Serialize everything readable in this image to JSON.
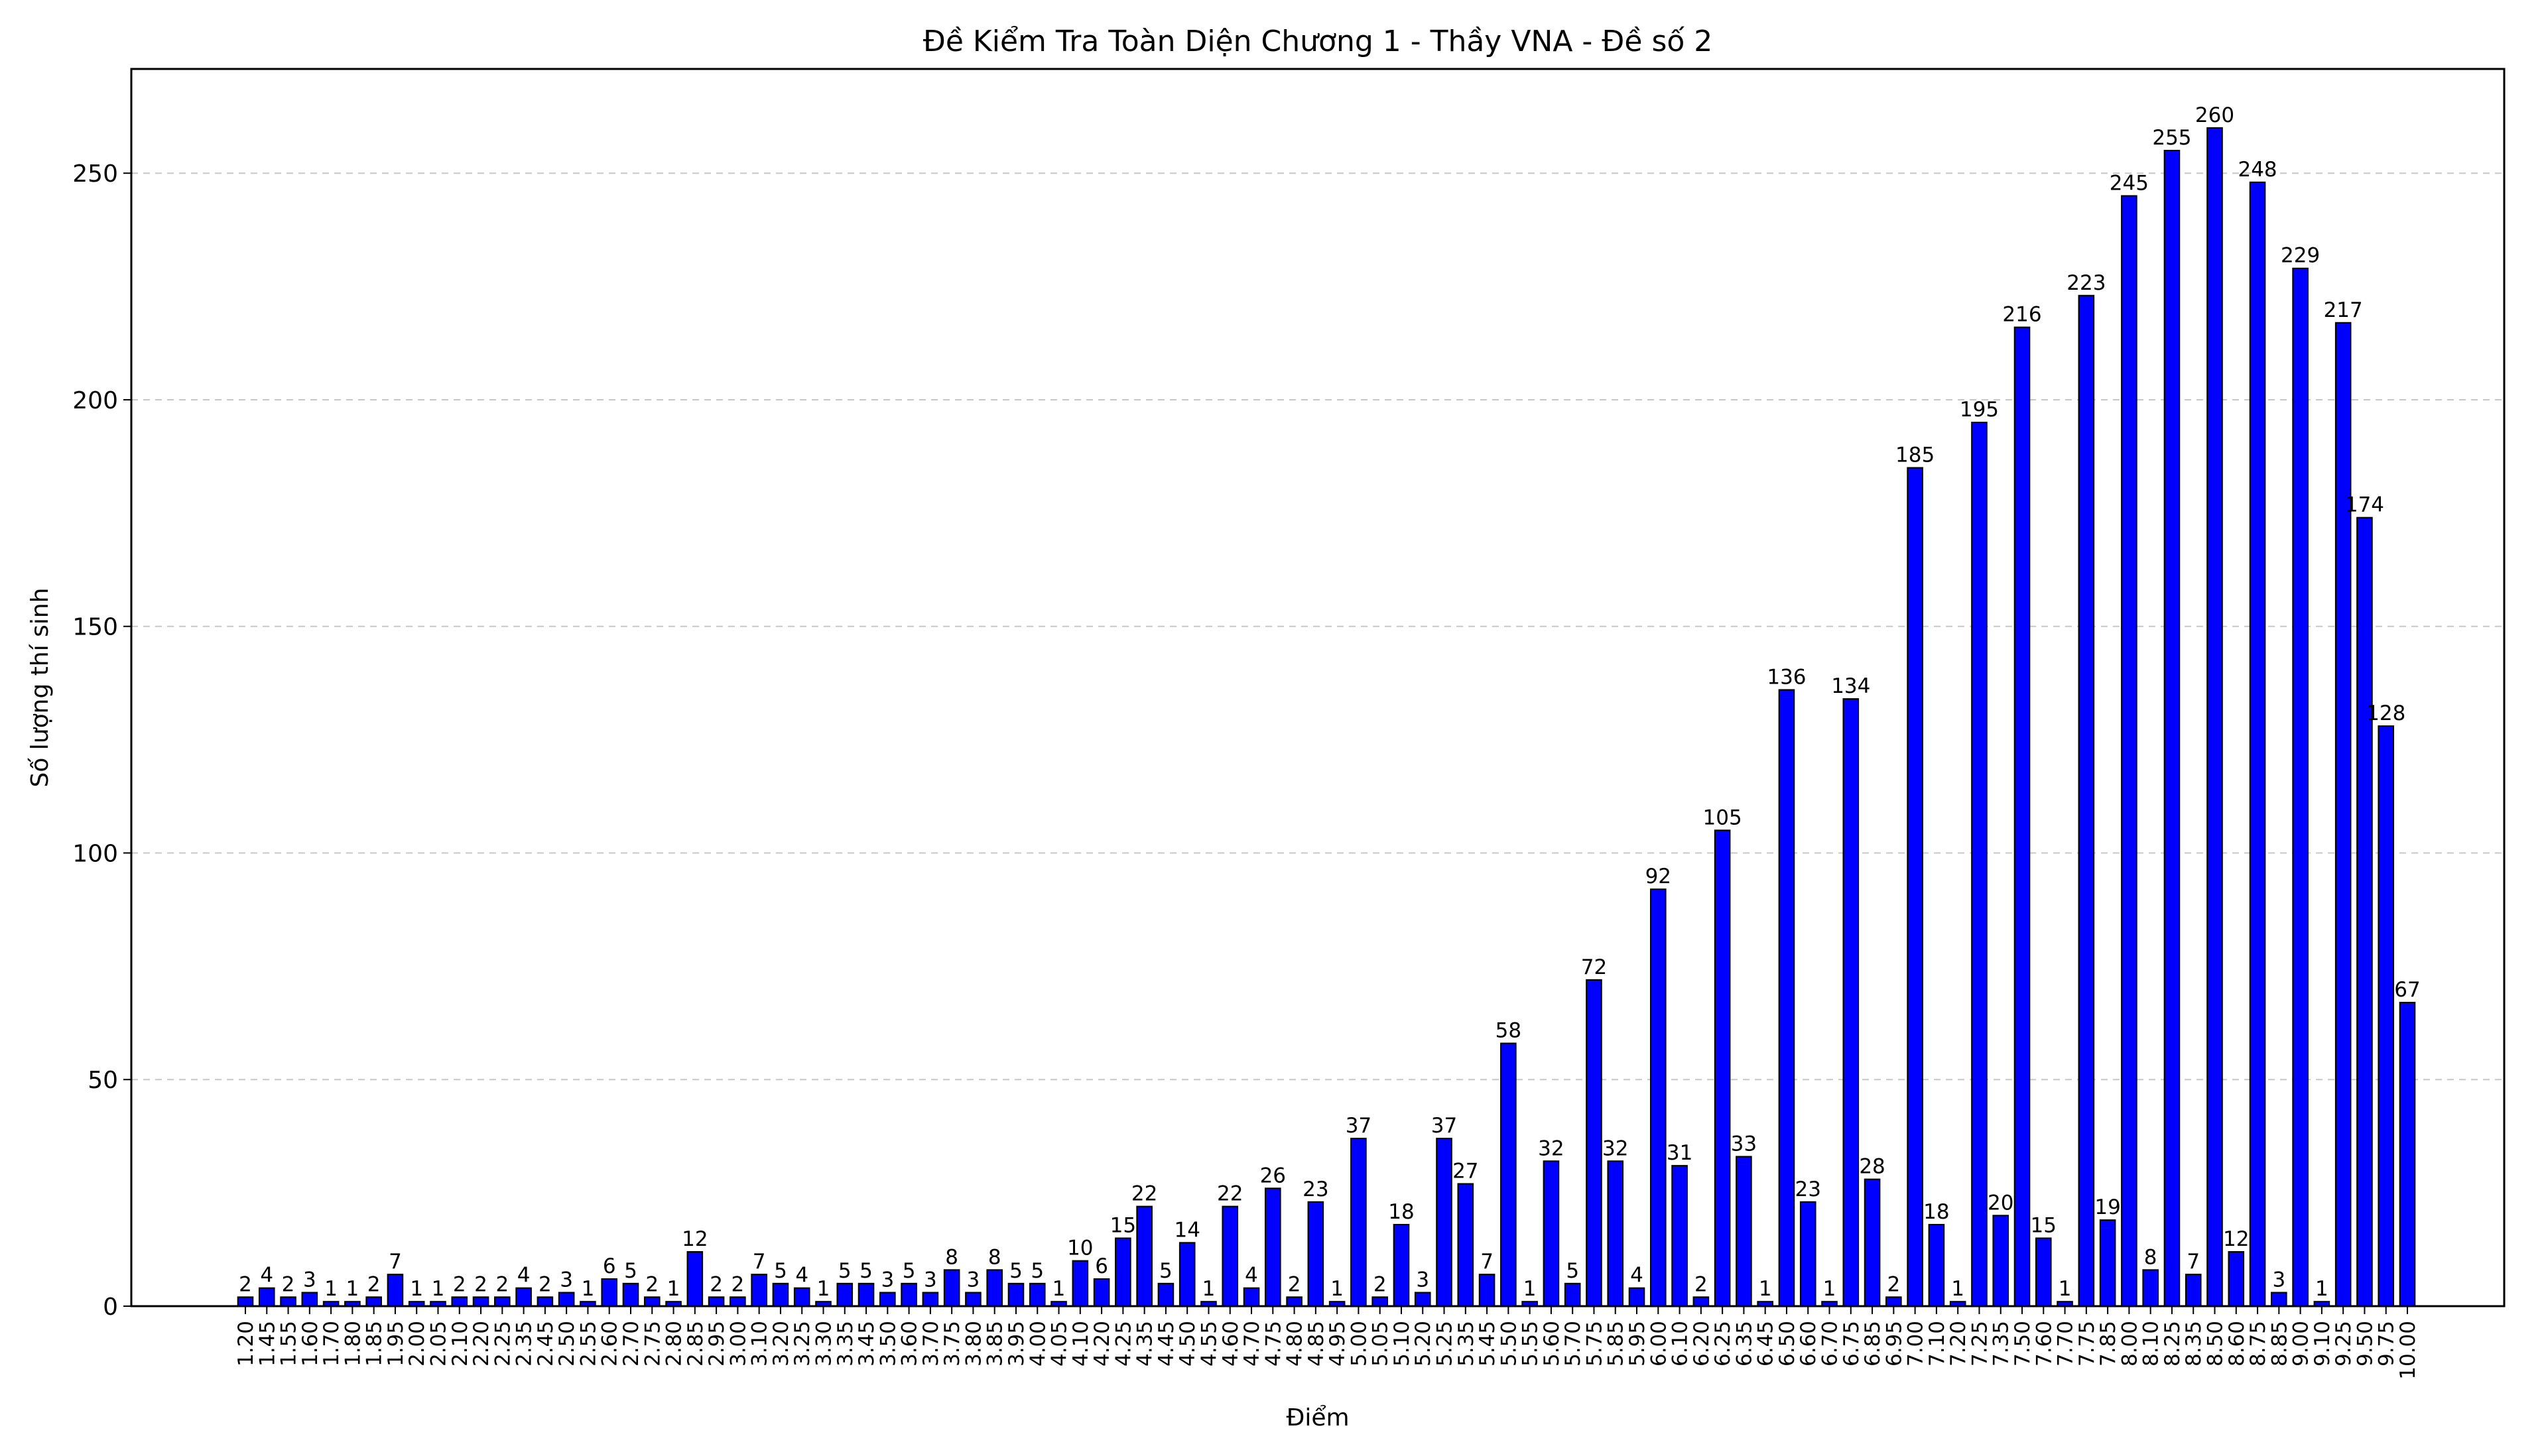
{
  "chart_data": {
    "type": "bar",
    "title": "Đề Kiểm Tra Toàn Diện Chương 1 - Thầy VNA - Đề số 2",
    "xlabel": "Điểm",
    "ylabel": "Số lượng thí sinh",
    "ylim": [
      0,
      273
    ],
    "yticks": [
      0,
      50,
      100,
      150,
      200,
      250
    ],
    "grid": "y-dashed",
    "bar_color": "#0000ff",
    "bar_edge_color": "#000000",
    "categories": [
      "1.20",
      "1.45",
      "1.55",
      "1.60",
      "1.70",
      "1.80",
      "1.85",
      "1.95",
      "2.00",
      "2.05",
      "2.10",
      "2.20",
      "2.25",
      "2.35",
      "2.45",
      "2.50",
      "2.55",
      "2.60",
      "2.70",
      "2.75",
      "2.80",
      "2.85",
      "2.95",
      "3.00",
      "3.10",
      "3.20",
      "3.25",
      "3.30",
      "3.35",
      "3.45",
      "3.50",
      "3.60",
      "3.70",
      "3.75",
      "3.80",
      "3.85",
      "3.95",
      "4.00",
      "4.05",
      "4.10",
      "4.20",
      "4.25",
      "4.35",
      "4.45",
      "4.50",
      "4.55",
      "4.60",
      "4.70",
      "4.75",
      "4.80",
      "4.85",
      "4.95",
      "5.00",
      "5.05",
      "5.10",
      "5.20",
      "5.25",
      "5.35",
      "5.45",
      "5.50",
      "5.55",
      "5.60",
      "5.70",
      "5.75",
      "5.85",
      "5.95",
      "6.00",
      "6.10",
      "6.20",
      "6.25",
      "6.35",
      "6.45",
      "6.50",
      "6.60",
      "6.70",
      "6.75",
      "6.85",
      "6.95",
      "7.00",
      "7.10",
      "7.20",
      "7.25",
      "7.35",
      "7.50",
      "7.60",
      "7.70",
      "7.75",
      "7.85",
      "8.00",
      "8.10",
      "8.25",
      "8.35",
      "8.50",
      "8.60",
      "8.75",
      "8.85",
      "9.00",
      "9.10",
      "9.25",
      "9.50",
      "9.75",
      "10.00"
    ],
    "values": [
      2,
      4,
      2,
      3,
      1,
      1,
      2,
      7,
      1,
      1,
      2,
      2,
      2,
      4,
      2,
      3,
      1,
      6,
      5,
      2,
      1,
      12,
      2,
      2,
      7,
      5,
      4,
      1,
      5,
      5,
      3,
      5,
      3,
      8,
      3,
      8,
      5,
      5,
      1,
      10,
      6,
      15,
      22,
      5,
      14,
      1,
      22,
      4,
      26,
      2,
      23,
      1,
      37,
      2,
      18,
      3,
      37,
      27,
      7,
      58,
      1,
      32,
      5,
      72,
      32,
      4,
      92,
      31,
      2,
      105,
      33,
      1,
      136,
      23,
      1,
      134,
      28,
      2,
      185,
      18,
      1,
      195,
      20,
      216,
      15,
      1,
      223,
      19,
      245,
      8,
      255,
      7,
      260,
      12,
      248,
      3,
      229,
      1,
      217,
      174,
      128,
      67
    ]
  }
}
